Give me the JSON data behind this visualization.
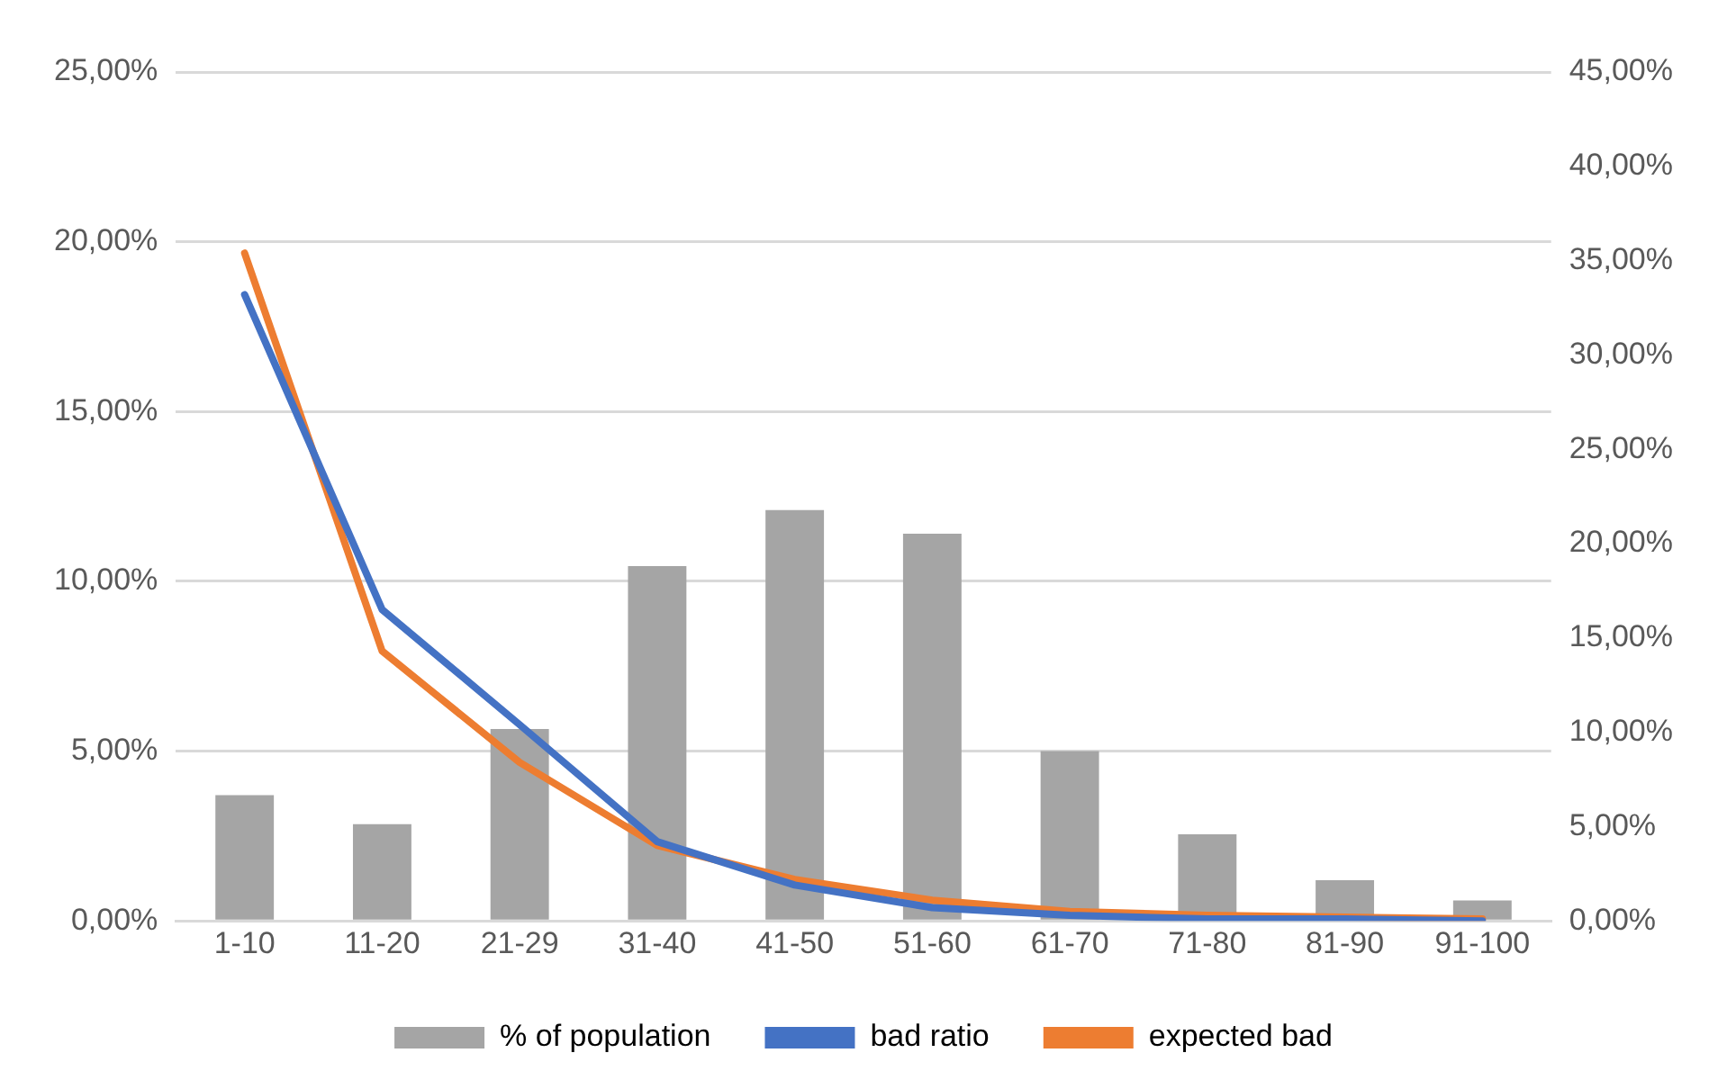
{
  "chart_data": {
    "type": "bar",
    "categories": [
      "1-10",
      "11-20",
      "21-29",
      "31-40",
      "41-50",
      "51-60",
      "61-70",
      "71-80",
      "81-90",
      "91-100"
    ],
    "series": [
      {
        "name": "% of population",
        "color": "#a5a5a5",
        "values": [
          3.7,
          2.85,
          5.65,
          10.45,
          12.1,
          11.4,
          5.0,
          2.55,
          1.2,
          0.6
        ]
      },
      {
        "name": "bad ratio",
        "type": "line",
        "axis": "y2",
        "color": "#4472c4",
        "values": [
          33.2,
          16.5,
          10.4,
          4.2,
          1.9,
          0.7,
          0.3,
          0.1,
          0.1,
          0.0
        ]
      },
      {
        "name": "expected bad",
        "type": "line",
        "axis": "y2",
        "color": "#ed7d31",
        "values": [
          35.4,
          14.3,
          8.4,
          4.0,
          2.2,
          1.1,
          0.5,
          0.3,
          0.2,
          0.1
        ]
      }
    ],
    "ylim": [
      0,
      25
    ],
    "yticks": [
      {
        "value": 0,
        "label": "0,00%"
      },
      {
        "value": 5,
        "label": "5,00%"
      },
      {
        "value": 10,
        "label": "10,00%"
      },
      {
        "value": 15,
        "label": "15,00%"
      },
      {
        "value": 20,
        "label": "20,00%"
      },
      {
        "value": 25,
        "label": "25,00%"
      }
    ],
    "y2lim": [
      0,
      45
    ],
    "y2ticks": [
      {
        "value": 0,
        "label": "0,00%"
      },
      {
        "value": 5,
        "label": "5,00%"
      },
      {
        "value": 10,
        "label": "10,00%"
      },
      {
        "value": 15,
        "label": "15,00%"
      },
      {
        "value": 20,
        "label": "20,00%"
      },
      {
        "value": 25,
        "label": "25,00%"
      },
      {
        "value": 30,
        "label": "30,00%"
      },
      {
        "value": 35,
        "label": "35,00%"
      },
      {
        "value": 40,
        "label": "40,00%"
      },
      {
        "value": 45,
        "label": "45,00%"
      }
    ],
    "grid": "y",
    "legend": "bottom",
    "marker": "none",
    "line_style": "solid"
  }
}
